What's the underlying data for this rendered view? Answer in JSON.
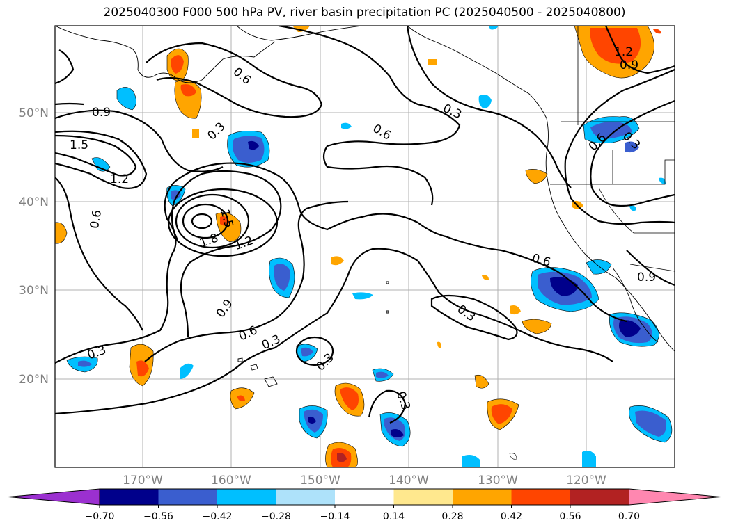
{
  "title": "2025040300 F000 500 hPa PV, river basin precipitation PC (2025040500 - 2025040800)",
  "map": {
    "lat_labels": [
      "50°N",
      "40°N",
      "30°N",
      "20°N"
    ],
    "lon_labels": [
      "170°W",
      "160°W",
      "150°W",
      "140°W",
      "130°W",
      "120°W"
    ],
    "contour_labels": [
      "0.3",
      "0.6",
      "0.9",
      "1.2",
      "1.5",
      "1.8"
    ]
  },
  "colorbar": {
    "tick_labels": [
      "−0.70",
      "−0.56",
      "−0.42",
      "−0.28",
      "−0.14",
      "0.14",
      "0.28",
      "0.42",
      "0.56",
      "0.70"
    ],
    "colors": [
      "#9b30d0",
      "#00008b",
      "#3a5ecf",
      "#00bfff",
      "#aee2fa",
      "#ffffff",
      "#ffe88e",
      "#ffa500",
      "#ff4500",
      "#b22222",
      "#ff87b0"
    ]
  }
}
